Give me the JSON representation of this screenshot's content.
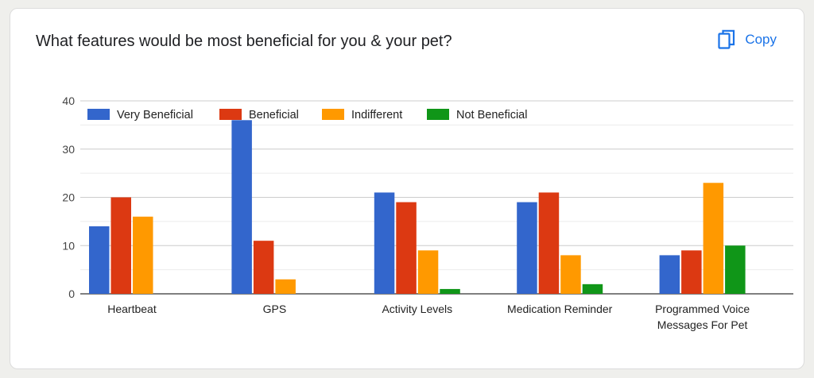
{
  "question": "What features would be most beneficial for you & your pet?",
  "copy_label": "Copy",
  "icons": {
    "copy": "copy-icon"
  },
  "chart_data": {
    "type": "bar",
    "categories": [
      [
        "Heartbeat"
      ],
      [
        "GPS"
      ],
      [
        "Activity Levels"
      ],
      [
        "Medication Reminder"
      ],
      [
        "Programmed Voice",
        "Messages For Pet"
      ]
    ],
    "series": [
      {
        "name": "Very Beneficial",
        "color": "#3366cc",
        "values": [
          14,
          36,
          21,
          19,
          8
        ]
      },
      {
        "name": "Beneficial",
        "color": "#dc3912",
        "values": [
          20,
          11,
          19,
          21,
          9
        ]
      },
      {
        "name": "Indifferent",
        "color": "#ff9900",
        "values": [
          16,
          3,
          9,
          8,
          23
        ]
      },
      {
        "name": "Not Beneficial",
        "color": "#109618",
        "values": [
          0,
          0,
          1,
          2,
          10
        ]
      }
    ],
    "yticks": [
      0,
      10,
      20,
      30,
      40
    ],
    "ylim": [
      0,
      40
    ],
    "grid": true,
    "legend_position": "top-left"
  }
}
